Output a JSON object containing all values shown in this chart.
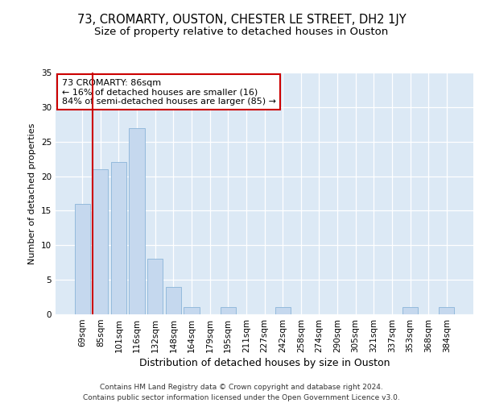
{
  "title1": "73, CROMARTY, OUSTON, CHESTER LE STREET, DH2 1JY",
  "title2": "Size of property relative to detached houses in Ouston",
  "xlabel": "Distribution of detached houses by size in Ouston",
  "ylabel": "Number of detached properties",
  "categories": [
    "69sqm",
    "85sqm",
    "101sqm",
    "116sqm",
    "132sqm",
    "148sqm",
    "164sqm",
    "179sqm",
    "195sqm",
    "211sqm",
    "227sqm",
    "242sqm",
    "258sqm",
    "274sqm",
    "290sqm",
    "305sqm",
    "321sqm",
    "337sqm",
    "353sqm",
    "368sqm",
    "384sqm"
  ],
  "values": [
    16,
    21,
    22,
    27,
    8,
    4,
    1,
    0,
    1,
    0,
    0,
    1,
    0,
    0,
    0,
    0,
    0,
    0,
    1,
    0,
    1
  ],
  "bar_color": "#c5d8ee",
  "bar_edge_color": "#8ab4d8",
  "vline_color": "#cc0000",
  "annotation_text": "73 CROMARTY: 86sqm\n← 16% of detached houses are smaller (16)\n84% of semi-detached houses are larger (85) →",
  "ylim": [
    0,
    35
  ],
  "yticks": [
    0,
    5,
    10,
    15,
    20,
    25,
    30,
    35
  ],
  "footer": "Contains HM Land Registry data © Crown copyright and database right 2024.\nContains public sector information licensed under the Open Government Licence v3.0.",
  "bg_color": "#ffffff",
  "plot_bg_color": "#dce9f5",
  "title1_fontsize": 10.5,
  "title2_fontsize": 9.5,
  "annotation_fontsize": 8,
  "footer_fontsize": 6.5,
  "ylabel_fontsize": 8,
  "xlabel_fontsize": 9,
  "tick_fontsize": 7.5
}
